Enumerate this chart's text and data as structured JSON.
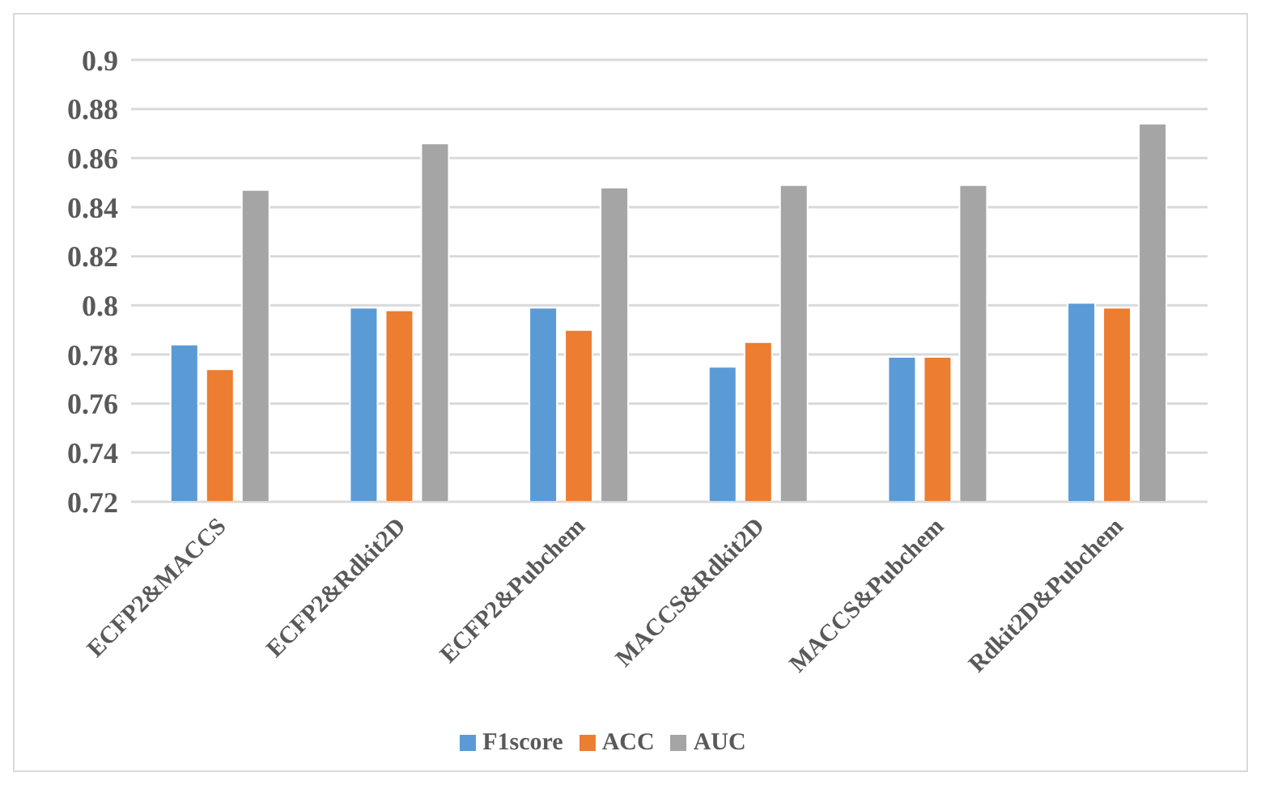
{
  "chart_data": {
    "type": "bar",
    "categories": [
      "ECFP2&MACCS",
      "ECFP2&Rdkit2D",
      "ECFP2&Pubchem",
      "MACCS&Rdkit2D",
      "MACCS&Pubchem",
      "Rdkit2D&Pubchem"
    ],
    "series": [
      {
        "name": "F1score",
        "color": "#5b9bd5",
        "values": [
          0.784,
          0.799,
          0.799,
          0.775,
          0.779,
          0.801
        ]
      },
      {
        "name": "ACC",
        "color": "#ed7d31",
        "values": [
          0.774,
          0.798,
          0.79,
          0.785,
          0.779,
          0.799
        ]
      },
      {
        "name": "AUC",
        "color": "#a5a5a5",
        "values": [
          0.847,
          0.866,
          0.848,
          0.849,
          0.849,
          0.874
        ]
      }
    ],
    "ylim": [
      0.72,
      0.9
    ],
    "yticks": [
      0.72,
      0.74,
      0.76,
      0.78,
      0.8,
      0.82,
      0.84,
      0.86,
      0.88,
      0.9
    ],
    "grid": "y",
    "legend": "bottom"
  }
}
